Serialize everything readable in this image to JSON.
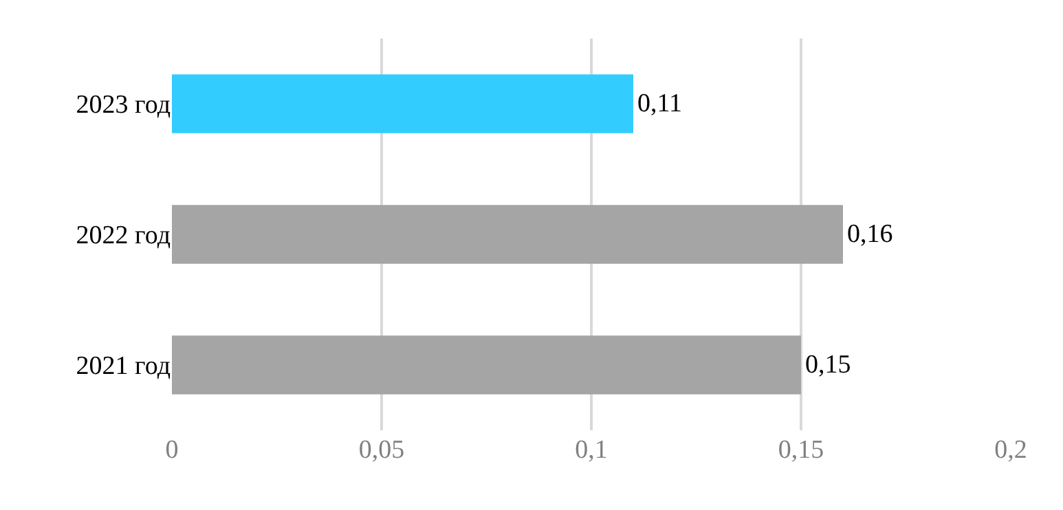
{
  "chart_data": {
    "type": "bar",
    "orientation": "horizontal",
    "categories": [
      "2023 год",
      "2022 год",
      "2021 год"
    ],
    "values": [
      0.11,
      0.16,
      0.15
    ],
    "colors": [
      "#33ccff",
      "#a5a5a5",
      "#a5a5a5"
    ],
    "value_labels": [
      "0,11",
      "0,16",
      "0,15"
    ],
    "xlim": [
      0,
      0.2
    ],
    "xticks": [
      0,
      {
        "value": 0.05,
        "label": "0,05"
      },
      {
        "value": 0.1,
        "label": "0,1"
      },
      {
        "value": 0.15,
        "label": "0,15"
      },
      {
        "value": 0.2,
        "label": "0,2"
      }
    ],
    "grid": "x",
    "legend": false
  }
}
